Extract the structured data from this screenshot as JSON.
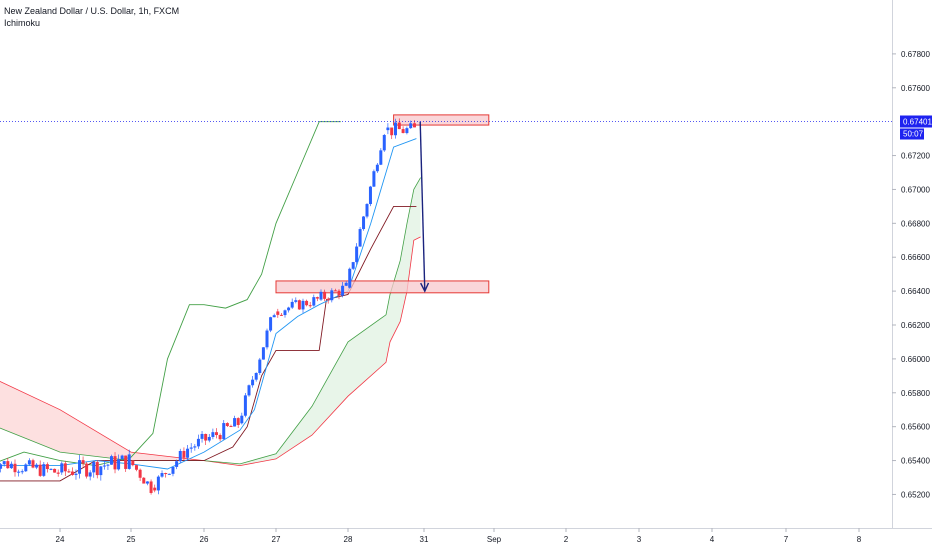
{
  "header": {
    "title": "New Zealand Dollar / U.S. Dollar, 1h, FXCM",
    "indicator": "Ichimoku"
  },
  "colors": {
    "up": "#2962ff",
    "down": "#f23645",
    "conversion": "#2196f3",
    "base": "#801922",
    "lagging": "#43a047",
    "lead1": "#a5d6a7",
    "lead2": "#ef9a9a",
    "cloud_bull": "#e8f5e9",
    "cloud_bear": "#fde0e0",
    "zone_fill": "#f8c8cc",
    "zone_border": "#e53935",
    "arrow": "#1a237e",
    "tag": "#1e22f0"
  },
  "chart_data": {
    "type": "candlestick",
    "y_axis": {
      "ticks": [
        "0.67800",
        "0.67600",
        "0.67400",
        "0.67200",
        "0.67000",
        "0.66800",
        "0.66600",
        "0.66400",
        "0.66200",
        "0.66000",
        "0.65800",
        "0.65600",
        "0.65400",
        "0.65200"
      ],
      "ylim": [
        0.6512,
        0.68
      ]
    },
    "x_axis": {
      "ticks": [
        "24",
        "25",
        "26",
        "27",
        "28",
        "31",
        "Sep",
        "2",
        "3",
        "4",
        "7",
        "8"
      ]
    },
    "last_price": {
      "value": "0.67401",
      "countdown": "50:07"
    },
    "candle_segments": [
      {
        "from": "23",
        "to": "24",
        "start": 0.654,
        "end": 0.6533,
        "noise": 0.00045
      },
      {
        "from": "24",
        "to": "25",
        "start": 0.6533,
        "end": 0.654,
        "noise": 0.00055
      },
      {
        "from": "25",
        "to": "25.3",
        "start": 0.654,
        "end": 0.6524,
        "noise": 0.0004
      },
      {
        "from": "25.3",
        "to": "25.8",
        "start": 0.6524,
        "end": 0.6547,
        "noise": 0.0004
      },
      {
        "from": "25.8",
        "to": "26.5",
        "start": 0.6547,
        "end": 0.6562,
        "noise": 0.00045
      },
      {
        "from": "26.5",
        "to": "27",
        "start": 0.6562,
        "end": 0.6628,
        "noise": 0.0004
      },
      {
        "from": "27",
        "to": "27.6",
        "start": 0.6628,
        "end": 0.6635,
        "noise": 0.00035
      },
      {
        "from": "27.6",
        "to": "28",
        "start": 0.6635,
        "end": 0.6642,
        "noise": 0.0004
      },
      {
        "from": "28",
        "to": "28.5",
        "start": 0.6642,
        "end": 0.6735,
        "noise": 0.00035
      },
      {
        "from": "28.5",
        "to": "28.9",
        "start": 0.6735,
        "end": 0.6735,
        "noise": 0.00045
      }
    ],
    "ichimoku": {
      "conversion": [
        [
          "23",
          0.6537
        ],
        [
          "24",
          0.6537
        ],
        [
          "24.5",
          0.654
        ],
        [
          "25",
          0.6538
        ],
        [
          "25.5",
          0.6535
        ],
        [
          "26",
          0.6545
        ],
        [
          "26.5",
          0.6558
        ],
        [
          "26.7",
          0.657
        ],
        [
          "27",
          0.6615
        ],
        [
          "27.3",
          0.6625
        ],
        [
          "27.6",
          0.6632
        ],
        [
          "28",
          0.664
        ],
        [
          "28.3",
          0.668
        ],
        [
          "28.6",
          0.6725
        ],
        [
          "28.9",
          0.673
        ]
      ],
      "base": [
        [
          "23",
          0.6528
        ],
        [
          "24",
          0.6528
        ],
        [
          "24.5",
          0.654
        ],
        [
          "25",
          0.654
        ],
        [
          "26",
          0.654
        ],
        [
          "26.4",
          0.6548
        ],
        [
          "26.6",
          0.656
        ],
        [
          "26.8",
          0.659
        ],
        [
          "27",
          0.6605
        ],
        [
          "27.6",
          0.6605
        ],
        [
          "27.7",
          0.6635
        ],
        [
          "28",
          0.6638
        ],
        [
          "28.3",
          0.6665
        ],
        [
          "28.6",
          0.669
        ],
        [
          "28.9",
          0.669
        ]
      ],
      "lagging": [
        [
          "23",
          0.6537
        ],
        [
          "23.5",
          0.6545
        ],
        [
          "24",
          0.654
        ],
        [
          "24.5",
          0.6537
        ],
        [
          "25",
          0.6542
        ],
        [
          "25.3",
          0.6556
        ],
        [
          "25.5",
          0.66
        ],
        [
          "25.8",
          0.6632
        ],
        [
          "26",
          0.6632
        ],
        [
          "26.3",
          0.663
        ],
        [
          "26.6",
          0.6635
        ],
        [
          "26.8",
          0.665
        ],
        [
          "27",
          0.668
        ],
        [
          "27.3",
          0.671
        ],
        [
          "27.6",
          0.674
        ],
        [
          "27.9",
          0.674
        ]
      ],
      "lead1": [
        [
          "23",
          0.6562
        ],
        [
          "24",
          0.6545
        ],
        [
          "25",
          0.654
        ],
        [
          "26",
          0.654
        ],
        [
          "26.5",
          0.6538
        ],
        [
          "27",
          0.6544
        ],
        [
          "27.5",
          0.6572
        ],
        [
          "28",
          0.661
        ],
        [
          "28.5",
          0.6626
        ],
        [
          "29",
          0.6638
        ],
        [
          "29.3",
          0.6658
        ],
        [
          "29.5",
          0.668
        ],
        [
          "29.7",
          0.67
        ],
        [
          "29.9",
          0.6707
        ]
      ],
      "lead2": [
        [
          "23",
          0.659
        ],
        [
          "24",
          0.657
        ],
        [
          "25",
          0.6545
        ],
        [
          "26",
          0.654
        ],
        [
          "26.5",
          0.6537
        ],
        [
          "27",
          0.6541
        ],
        [
          "27.5",
          0.6555
        ],
        [
          "28",
          0.6578
        ],
        [
          "28.5",
          0.6598
        ],
        [
          "29",
          0.661
        ],
        [
          "29.3",
          0.6622
        ],
        [
          "29.5",
          0.664
        ],
        [
          "29.7",
          0.667
        ],
        [
          "29.9",
          0.6672
        ]
      ]
    },
    "zones": [
      {
        "x_start": "28.6",
        "x_end": "31.9",
        "low": 0.6738,
        "high": 0.6744
      },
      {
        "x_start": "27",
        "x_end": "31.9",
        "low": 0.6639,
        "high": 0.6646
      }
    ],
    "arrow": {
      "from": [
        "28.95",
        0.674
      ],
      "to": [
        "30.2",
        0.664
      ]
    },
    "title": "",
    "xlabel": "",
    "ylabel": ""
  }
}
